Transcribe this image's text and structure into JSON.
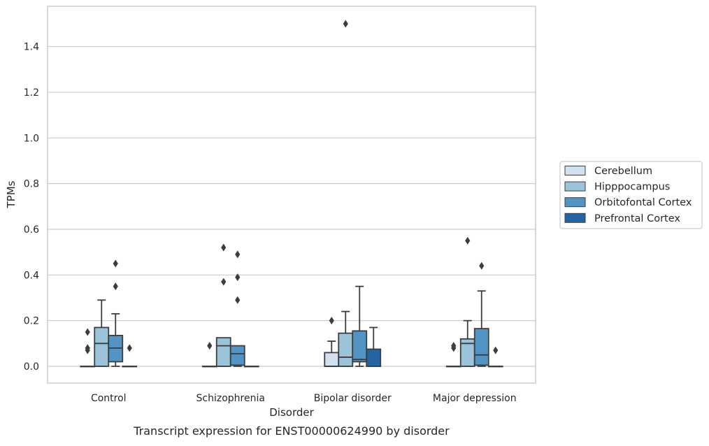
{
  "chart_data": {
    "type": "box",
    "title": "",
    "caption": "Transcript expression for ENST00000624990 by disorder",
    "xlabel": "Disorder",
    "ylabel": "TPMs",
    "ylim": [
      -0.075,
      1.57
    ],
    "yticks": [
      "0.0",
      "0.2",
      "0.4",
      "0.6",
      "0.8",
      "1.0",
      "1.2",
      "1.4"
    ],
    "grid": "horizontal",
    "legend_position": "right",
    "categories": [
      "Control",
      "Schizophrenia",
      "Bipolar disorder",
      "Major depression"
    ],
    "series": [
      {
        "name": "Cerebellum",
        "color": "#d1e1f0",
        "boxes": [
          {
            "q1": 0.0,
            "median": 0.0,
            "q3": 0.0,
            "whisker_low": 0.0,
            "whisker_high": 0.0,
            "outliers": [
              0.15,
              0.08,
              0.07
            ]
          },
          {
            "q1": 0.0,
            "median": 0.0,
            "q3": 0.0,
            "whisker_low": 0.0,
            "whisker_high": 0.0,
            "outliers": [
              0.09
            ]
          },
          {
            "q1": 0.0,
            "median": 0.0,
            "q3": 0.06,
            "whisker_low": 0.0,
            "whisker_high": 0.11,
            "outliers": [
              0.2
            ]
          },
          {
            "q1": 0.0,
            "median": 0.0,
            "q3": 0.0,
            "whisker_low": 0.0,
            "whisker_high": 0.0,
            "outliers": [
              0.09,
              0.08
            ]
          }
        ]
      },
      {
        "name": "Hipppocampus",
        "color": "#9bc4db",
        "boxes": [
          {
            "q1": 0.0,
            "median": 0.1,
            "q3": 0.17,
            "whisker_low": 0.0,
            "whisker_high": 0.29,
            "outliers": []
          },
          {
            "q1": 0.0,
            "median": 0.09,
            "q3": 0.125,
            "whisker_low": 0.0,
            "whisker_high": 0.125,
            "outliers": [
              0.52,
              0.37
            ]
          },
          {
            "q1": 0.0,
            "median": 0.04,
            "q3": 0.145,
            "whisker_low": 0.0,
            "whisker_high": 0.24,
            "outliers": [
              1.5
            ]
          },
          {
            "q1": 0.0,
            "median": 0.1,
            "q3": 0.12,
            "whisker_low": 0.0,
            "whisker_high": 0.2,
            "outliers": [
              0.55
            ]
          }
        ]
      },
      {
        "name": "Orbitofontal Cortex",
        "color": "#5294c3",
        "boxes": [
          {
            "q1": 0.02,
            "median": 0.08,
            "q3": 0.135,
            "whisker_low": 0.0,
            "whisker_high": 0.23,
            "outliers": [
              0.45,
              0.35
            ]
          },
          {
            "q1": 0.005,
            "median": 0.055,
            "q3": 0.09,
            "whisker_low": 0.0,
            "whisker_high": 0.09,
            "outliers": [
              0.49,
              0.39,
              0.29
            ]
          },
          {
            "q1": 0.02,
            "median": 0.03,
            "q3": 0.155,
            "whisker_low": 0.0,
            "whisker_high": 0.35,
            "outliers": []
          },
          {
            "q1": 0.005,
            "median": 0.05,
            "q3": 0.165,
            "whisker_low": 0.0,
            "whisker_high": 0.33,
            "outliers": [
              0.44
            ]
          }
        ]
      },
      {
        "name": "Prefrontal Cortex",
        "color": "#2464a5",
        "boxes": [
          {
            "q1": 0.0,
            "median": 0.0,
            "q3": 0.0,
            "whisker_low": 0.0,
            "whisker_high": 0.0,
            "outliers": [
              0.08
            ]
          },
          {
            "q1": 0.0,
            "median": 0.0,
            "q3": 0.0,
            "whisker_low": 0.0,
            "whisker_high": 0.0,
            "outliers": []
          },
          {
            "q1": 0.0,
            "median": 0.0,
            "q3": 0.075,
            "whisker_low": 0.0,
            "whisker_high": 0.17,
            "outliers": []
          },
          {
            "q1": 0.0,
            "median": 0.0,
            "q3": 0.0,
            "whisker_low": 0.0,
            "whisker_high": 0.0,
            "outliers": [
              0.07
            ]
          }
        ]
      }
    ]
  }
}
